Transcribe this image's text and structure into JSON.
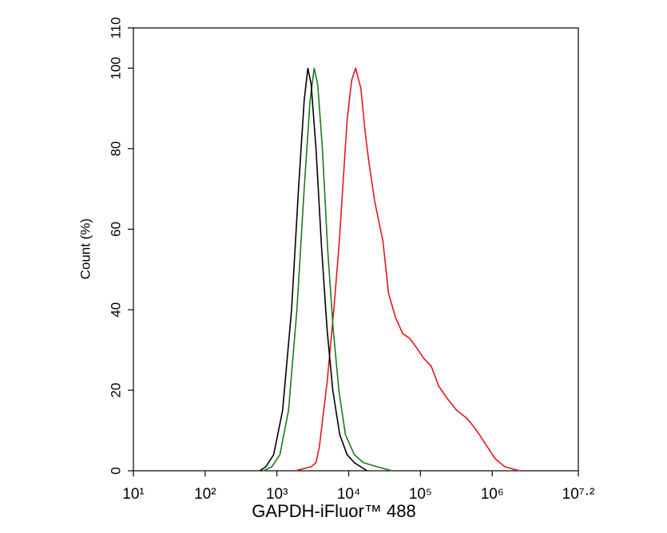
{
  "chart_data": {
    "type": "line",
    "xlabel": "GAPDH-iFluor™ 488",
    "ylabel": "Count  (%)",
    "xscale": "log",
    "xlim": [
      10,
      15848931.92
    ],
    "xticks": [
      {
        "value": 10,
        "label": "10¹"
      },
      {
        "value": 100,
        "label": "10²"
      },
      {
        "value": 1000,
        "label": "10³"
      },
      {
        "value": 10000,
        "label": "10⁴"
      },
      {
        "value": 100000,
        "label": "10⁵"
      },
      {
        "value": 1000000,
        "label": "10⁶"
      },
      {
        "value": 15848931.92,
        "label": "10⁷·²"
      }
    ],
    "ylim": [
      0,
      110
    ],
    "yticks": [
      0,
      20,
      40,
      60,
      80,
      100,
      110
    ],
    "series": [
      {
        "color": "#e8141b",
        "x": [
          1800,
          3000,
          3500,
          3900,
          5000,
          6200,
          7400,
          9500,
          11000,
          12500,
          14800,
          17000,
          19000,
          23000,
          30000,
          36000,
          45000,
          57000,
          70000,
          85000,
          110000,
          141000,
          180000,
          235000,
          320000,
          445000,
          550000,
          660000,
          850000,
          1100000,
          1500000,
          2400000
        ],
        "values": [
          0,
          1,
          2,
          6,
          22,
          40,
          57,
          87,
          97,
          100,
          95,
          84,
          77,
          67,
          57,
          44,
          38,
          34,
          33,
          31,
          28,
          26,
          21,
          18,
          15,
          13,
          11,
          9,
          6,
          3,
          1,
          0
        ]
      },
      {
        "color": "#1a7a1a",
        "x": [
          650,
          850,
          1100,
          1450,
          1900,
          2400,
          2900,
          3300,
          3700,
          4300,
          5100,
          6100,
          7300,
          9000,
          12000,
          16000,
          25000,
          40000
        ],
        "values": [
          0,
          1,
          4,
          15,
          40,
          70,
          92,
          100,
          96,
          80,
          55,
          35,
          20,
          9,
          4,
          2,
          1,
          0
        ]
      },
      {
        "color": "#000000",
        "x": [
          575,
          700,
          900,
          1200,
          1600,
          2000,
          2400,
          2700,
          3000,
          3500,
          4200,
          5000,
          6000,
          7500,
          9500,
          12000,
          18000
        ],
        "values": [
          0,
          1,
          4,
          15,
          40,
          70,
          92,
          100,
          96,
          80,
          55,
          35,
          20,
          9,
          4,
          2,
          0
        ]
      }
    ]
  }
}
